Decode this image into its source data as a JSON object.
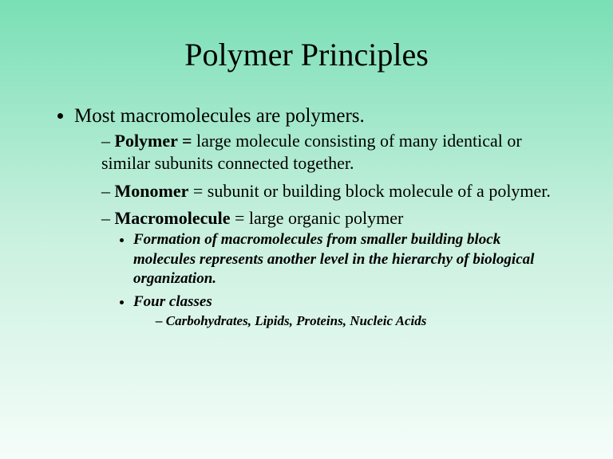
{
  "title": "Polymer Principles",
  "bullet1": "Most macromolecules are polymers.",
  "sub1_term": "Polymer = ",
  "sub1_def": "large molecule consisting of many identical or similar subunits connected together.",
  "sub2_term": "Monomer",
  "sub2_def": " = subunit or building block molecule of a polymer.",
  "sub3_term": "Macromolecule",
  "sub3_def": " = large organic polymer",
  "l3a": "Formation of macromolecules from smaller building block molecules represents another level in the hierarchy of biological organization.",
  "l3b": "Four classes",
  "l4": "Carbohydrates, Lipids, Proteins, Nucleic Acids"
}
